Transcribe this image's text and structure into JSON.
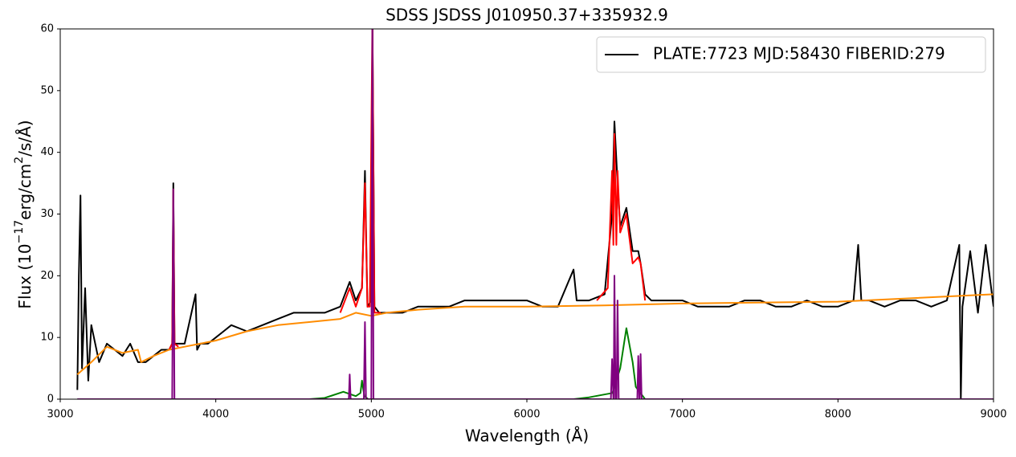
{
  "chart_data": {
    "type": "line",
    "title": "SDSS JSDSS J010950.37+335932.9",
    "xlabel": "Wavelength (Å)",
    "ylabel": [
      "Flux (10",
      "−17",
      "erg/cm",
      "2",
      "/s/Å)"
    ],
    "xlim": [
      3000,
      9000
    ],
    "ylim": [
      0,
      60
    ],
    "xticks": [
      3000,
      4000,
      5000,
      6000,
      7000,
      8000,
      9000
    ],
    "yticks": [
      0,
      10,
      20,
      30,
      40,
      50,
      60
    ],
    "legend": "upper right",
    "series": [
      {
        "name": "PLATE:7723 MJD:58430 FIBERID:279",
        "color": "#000000",
        "x": [
          3110,
          3120,
          3130,
          3140,
          3160,
          3180,
          3200,
          3250,
          3300,
          3350,
          3400,
          3450,
          3500,
          3550,
          3600,
          3650,
          3700,
          3720,
          3727,
          3735,
          3800,
          3870,
          3880,
          3900,
          3950,
          4000,
          4050,
          4100,
          4200,
          4300,
          4400,
          4500,
          4600,
          4700,
          4800,
          4861,
          4900,
          4940,
          4959,
          4975,
          5000,
          5007,
          5020,
          5050,
          5100,
          5200,
          5300,
          5400,
          5500,
          5600,
          5700,
          5800,
          5900,
          6000,
          6100,
          6200,
          6300,
          6320,
          6400,
          6500,
          6548,
          6563,
          6583,
          6600,
          6640,
          6680,
          6716,
          6731,
          6760,
          6800,
          6900,
          7000,
          7100,
          7200,
          7300,
          7400,
          7500,
          7600,
          7700,
          7800,
          7900,
          8000,
          8100,
          8130,
          8150,
          8200,
          8300,
          8400,
          8500,
          8600,
          8700,
          8780,
          8790,
          8800,
          8850,
          8900,
          8950,
          9000
        ],
        "values": [
          1.5,
          20,
          33,
          5,
          18,
          3,
          12,
          6,
          9,
          8,
          7,
          9,
          6,
          6,
          7,
          8,
          8,
          9,
          35,
          9,
          9,
          17,
          8,
          9,
          9,
          10,
          11,
          12,
          11,
          12,
          13,
          14,
          14,
          14,
          15,
          19,
          16,
          18,
          37,
          15,
          16,
          62,
          15,
          14,
          14,
          14,
          15,
          15,
          15,
          16,
          16,
          16,
          16,
          16,
          15,
          15,
          21,
          16,
          16,
          17,
          30,
          45,
          35,
          28,
          31,
          24,
          24,
          22,
          17,
          16,
          16,
          16,
          15,
          15,
          15,
          16,
          16,
          15,
          15,
          16,
          15,
          15,
          16,
          25,
          16,
          16,
          15,
          16,
          16,
          15,
          16,
          25,
          0,
          15,
          24,
          14,
          25,
          15
        ]
      },
      {
        "color": "#ff0000",
        "x": [
          3700,
          3720,
          3727,
          3735,
          3760,
          3800,
          4800,
          4861,
          4900,
          4940,
          4959,
          4975,
          4990,
          5007,
          5020,
          5060,
          5100,
          6450,
          6520,
          6548,
          6556,
          6563,
          6575,
          6583,
          6600,
          6640,
          6680,
          6716,
          6731,
          6760
        ],
        "values": [
          8,
          9,
          34,
          9,
          8.5,
          null,
          14,
          18,
          15,
          18,
          35,
          15,
          15,
          62,
          14,
          14,
          null,
          16,
          18,
          37,
          25,
          43,
          25,
          37,
          27,
          30,
          22,
          23,
          22,
          16
        ]
      },
      {
        "color": "#ff8c00",
        "x": [
          3110,
          3200,
          3300,
          3400,
          3500,
          3520,
          3600,
          3700,
          3800,
          3900,
          4000,
          4200,
          4400,
          4600,
          4800,
          4900,
          5000,
          5100,
          5300,
          5600,
          6000,
          6500,
          7000,
          8000,
          9000
        ],
        "values": [
          4,
          6,
          8.5,
          7.5,
          8,
          6,
          7,
          8,
          8.5,
          9,
          9.5,
          11,
          12,
          12.5,
          13,
          14,
          13.5,
          14,
          14.5,
          15,
          15,
          15.2,
          15.5,
          15.8,
          17
        ]
      },
      {
        "color": "#008000",
        "x": [
          3110,
          4600,
          4700,
          4820,
          4900,
          4930,
          4940,
          4955,
          4980,
          6300,
          6400,
          6550,
          6600,
          6640,
          6680,
          6700,
          6760,
          9000
        ],
        "values": [
          0,
          0,
          0.2,
          1.2,
          0.5,
          1,
          3,
          0.5,
          0,
          0,
          0.3,
          1,
          5,
          11.5,
          6,
          2,
          0,
          0
        ]
      },
      {
        "color": "#800080",
        "x": [
          3110,
          3720,
          3727,
          3734,
          4855,
          4861,
          4867,
          4952,
          4959,
          4966,
          5000,
          5007,
          5014,
          6540,
          6548,
          6556,
          6558,
          6563,
          6570,
          6577,
          6583,
          6590,
          6710,
          6716,
          6723,
          6725,
          6731,
          6738,
          9000
        ],
        "values": [
          0,
          0,
          34,
          0,
          0,
          4,
          0,
          0,
          12.5,
          0,
          0,
          62,
          0,
          0,
          6.5,
          0,
          0,
          20,
          0,
          0,
          16,
          0,
          0,
          7,
          0,
          0,
          7.3,
          0,
          0
        ]
      }
    ]
  }
}
